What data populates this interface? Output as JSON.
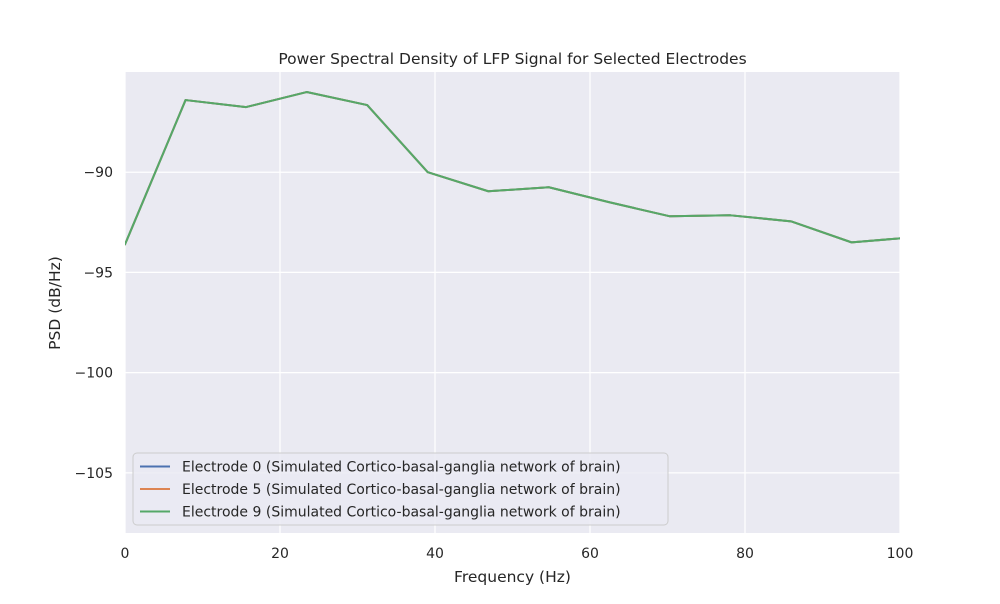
{
  "chart_data": {
    "type": "line",
    "title": "Power Spectral Density of LFP Signal for Selected Electrodes",
    "xlabel": "Frequency (Hz)",
    "ylabel": "PSD (dB/Hz)",
    "xlim": [
      0,
      100
    ],
    "ylim": [
      -108,
      -85
    ],
    "xticks": [
      0,
      20,
      40,
      60,
      80,
      100
    ],
    "xtick_labels": [
      "0",
      "20",
      "40",
      "60",
      "80",
      "100"
    ],
    "yticks": [
      -105,
      -100,
      -95,
      -90
    ],
    "ytick_labels": [
      "−105",
      "−100",
      "−95",
      "−90"
    ],
    "grid": true,
    "legend_position": "lower-left",
    "x": [
      0,
      7.8125,
      15.625,
      23.4375,
      31.25,
      39.0625,
      46.875,
      54.6875,
      62.5,
      70.3125,
      78.125,
      85.9375,
      93.75,
      100
    ],
    "series": [
      {
        "name": "Electrode 0 (Simulated Cortico-basal-ganglia network of brain)",
        "color": "#4c72b0",
        "values": [
          -93.6,
          -86.4,
          -86.75,
          -86.0,
          -86.65,
          -90.0,
          -90.95,
          -90.75,
          -91.5,
          -92.2,
          -92.15,
          -92.45,
          -93.5,
          -93.3
        ]
      },
      {
        "name": "Electrode 5 (Simulated Cortico-basal-ganglia network of brain)",
        "color": "#dd8452",
        "values": [
          -93.6,
          -86.4,
          -86.75,
          -86.0,
          -86.65,
          -90.0,
          -90.95,
          -90.75,
          -91.5,
          -92.2,
          -92.15,
          -92.45,
          -93.5,
          -93.3
        ]
      },
      {
        "name": "Electrode 9 (Simulated Cortico-basal-ganglia network of brain)",
        "color": "#55a868",
        "values": [
          -93.6,
          -86.4,
          -86.75,
          -86.0,
          -86.65,
          -90.0,
          -90.95,
          -90.75,
          -91.5,
          -92.2,
          -92.15,
          -92.45,
          -93.5,
          -93.3
        ]
      }
    ]
  },
  "style": {
    "plot_background": "#eaeaf2",
    "grid_color": "#ffffff",
    "legend_background": "#eaeaf2",
    "legend_border": "#cccccc"
  }
}
